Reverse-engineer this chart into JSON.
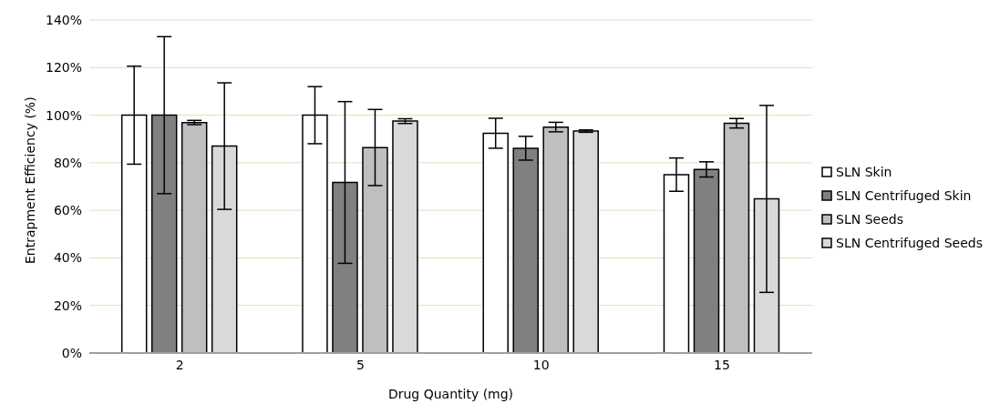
{
  "chart_data": {
    "type": "bar",
    "xlabel": "Drug Quantity (mg)",
    "ylabel": "Entrapment Efficiency (%)",
    "categories": [
      "2",
      "5",
      "10",
      "15"
    ],
    "series": [
      {
        "name": "SLN Skin",
        "color": "#ffffff",
        "values": [
          100,
          100,
          92.4,
          75.0
        ],
        "errors": [
          20.6,
          12,
          6.3,
          7
        ]
      },
      {
        "name": "SLN Centrifuged Skin",
        "color": "#808080",
        "values": [
          100,
          71.7,
          86.1,
          77.2
        ],
        "errors": [
          33,
          34,
          5,
          3.2
        ]
      },
      {
        "name": "SLN Seeds",
        "color": "#bfbfbf",
        "values": [
          96.9,
          86.4,
          95.0,
          96.6
        ],
        "errors": [
          0.9,
          16,
          2,
          2
        ]
      },
      {
        "name": "SLN Centrifuged Seeds",
        "color": "#d9d9d9",
        "values": [
          87.0,
          97.5,
          93.3,
          64.8
        ],
        "errors": [
          26.6,
          1,
          0.5,
          39.3
        ]
      }
    ],
    "ylim": [
      0,
      140
    ],
    "yticks": [
      {
        "value": 0,
        "label": "0%"
      },
      {
        "value": 20,
        "label": "20%"
      },
      {
        "value": 40,
        "label": "40%"
      },
      {
        "value": 60,
        "label": "60%"
      },
      {
        "value": 80,
        "label": "80%"
      },
      {
        "value": 100,
        "label": "100%"
      },
      {
        "value": 120,
        "label": "120%"
      },
      {
        "value": 140,
        "label": "140%"
      }
    ],
    "grid": "y",
    "legend": "right"
  }
}
